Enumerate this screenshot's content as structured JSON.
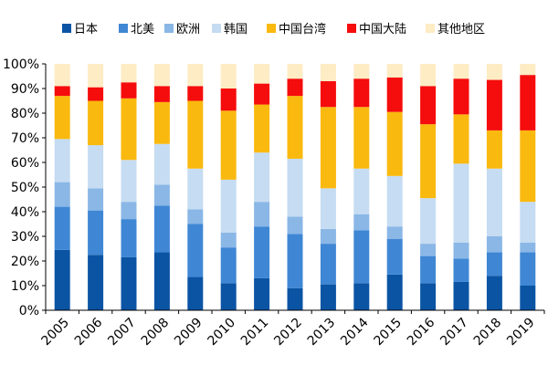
{
  "chart_data": {
    "type": "bar",
    "stacked": true,
    "normalized": true,
    "categories": [
      "2005",
      "2006",
      "2007",
      "2008",
      "2009",
      "2010",
      "2011",
      "2012",
      "2013",
      "2014",
      "2015",
      "2016",
      "2017",
      "2018",
      "2019"
    ],
    "series": [
      {
        "name": "日本",
        "color": "#0b54a4",
        "values": [
          24.5,
          22.5,
          21.5,
          23.5,
          13.5,
          11,
          13,
          9,
          10.5,
          11,
          14.5,
          11,
          11.5,
          14,
          10
        ]
      },
      {
        "name": "北美",
        "color": "#3f87d4",
        "values": [
          17.5,
          18,
          15.5,
          19,
          21.5,
          14.5,
          21,
          22,
          16.5,
          21.5,
          14.5,
          11,
          9.5,
          9.5,
          13.5
        ]
      },
      {
        "name": "欧洲",
        "color": "#8ab7e6",
        "values": [
          10,
          9,
          7,
          8.5,
          6,
          6,
          10,
          7,
          6,
          6.5,
          5,
          5,
          6.5,
          6.5,
          4
        ]
      },
      {
        "name": "韩国",
        "color": "#c5dcf2",
        "values": [
          17.5,
          17.5,
          17,
          16.5,
          16.5,
          21.5,
          20,
          23.5,
          16.5,
          18.5,
          20.5,
          18.5,
          32,
          27.5,
          16.5
        ]
      },
      {
        "name": "中国台湾",
        "color": "#f9b90f",
        "values": [
          17.5,
          18,
          25,
          17,
          27.5,
          28,
          19.5,
          25.5,
          33,
          25,
          26,
          30,
          20,
          15.5,
          29
        ]
      },
      {
        "name": "中国大陆",
        "color": "#f50c0c",
        "values": [
          4,
          5.5,
          6.5,
          6.5,
          6,
          9,
          8.5,
          7,
          10.5,
          11.5,
          14,
          15.5,
          14.5,
          20.5,
          22.5
        ]
      },
      {
        "name": "其他地区",
        "color": "#fdecc4",
        "values": [
          9,
          9.5,
          7.5,
          9,
          9,
          10,
          8,
          6,
          7,
          6,
          5.5,
          9,
          6,
          6.5,
          4.5
        ]
      }
    ],
    "yticks": [
      "0%",
      "10%",
      "20%",
      "30%",
      "40%",
      "50%",
      "60%",
      "70%",
      "80%",
      "90%",
      "100%"
    ],
    "ylim": [
      0,
      100
    ],
    "grid": false,
    "legend": "top"
  }
}
